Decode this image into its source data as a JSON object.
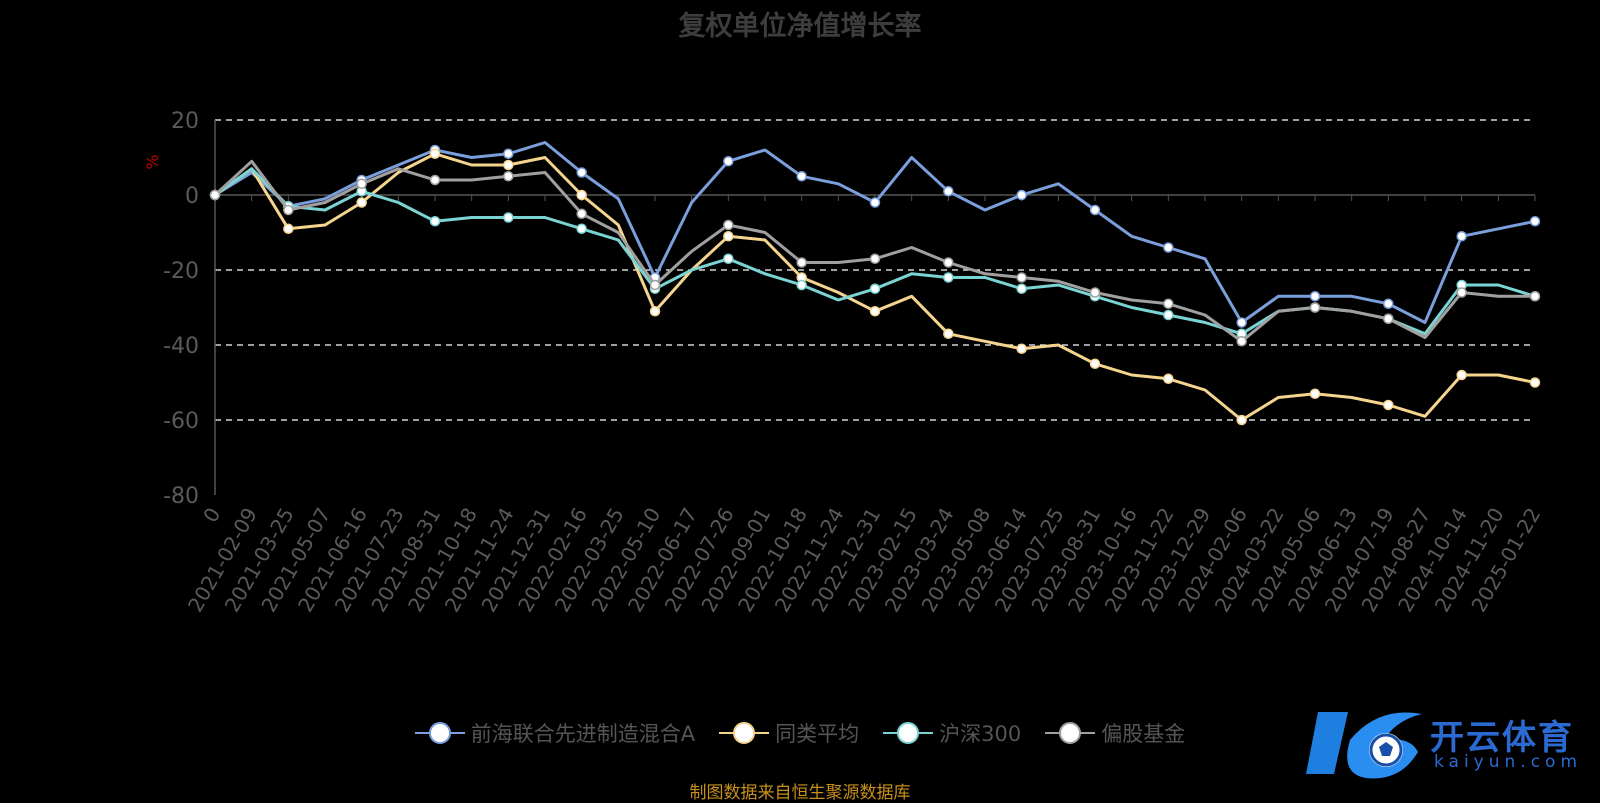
{
  "title": "复权单位净值增长率",
  "source_note": "制图数据来自恒生聚源数据库",
  "brand": {
    "name": "开云体育",
    "domain": "kaiyun.com"
  },
  "colors": {
    "grid": "#ffffff",
    "axis": "#555555",
    "tick_label": "#5a5a5a",
    "ylabel": "#c00000"
  },
  "chart_data": {
    "type": "line",
    "title": "复权单位净值增长率",
    "ylabel": "%",
    "ylim": [
      -80,
      20
    ],
    "yticks": [
      20,
      0,
      -20,
      -40,
      -60,
      -80
    ],
    "grid": "horizontal dashed",
    "legend_position": "bottom",
    "x": [
      "0",
      "2021-02-09",
      "2021-03-25",
      "2021-05-07",
      "2021-06-16",
      "2021-07-23",
      "2021-08-31",
      "2021-10-18",
      "2021-11-24",
      "2021-12-31",
      "2022-02-16",
      "2022-03-25",
      "2022-05-10",
      "2022-06-17",
      "2022-07-26",
      "2022-09-01",
      "2022-10-18",
      "2022-11-24",
      "2022-12-31",
      "2023-02-15",
      "2023-03-24",
      "2023-05-08",
      "2023-06-14",
      "2023-07-25",
      "2023-08-31",
      "2023-10-16",
      "2023-11-22",
      "2023-12-29",
      "2024-02-06",
      "2024-03-22",
      "2024-05-06",
      "2024-06-13",
      "2024-07-19",
      "2024-08-27",
      "2024-10-14",
      "2024-11-20",
      "2025-01-22"
    ],
    "series": [
      {
        "name": "前海联合先进制造混合A",
        "color": "#7b9fdc",
        "values": [
          0,
          6,
          -3,
          -1,
          4,
          8,
          12,
          10,
          11,
          14,
          6,
          -1,
          -22,
          -2,
          9,
          12,
          5,
          3,
          -2,
          10,
          1,
          -4,
          0,
          3,
          -4,
          -11,
          -14,
          -17,
          -34,
          -27,
          -27,
          -27,
          -29,
          -34,
          -11,
          -9,
          -7
        ]
      },
      {
        "name": "同类平均",
        "color": "#f5d48e",
        "values": [
          0,
          7,
          -9,
          -8,
          -2,
          6,
          11,
          8,
          8,
          10,
          0,
          -8,
          -31,
          -20,
          -11,
          -12,
          -22,
          -26,
          -31,
          -27,
          -37,
          -39,
          -41,
          -40,
          -45,
          -48,
          -49,
          -52,
          -60,
          -54,
          -53,
          -54,
          -56,
          -59,
          -48,
          -48,
          -50
        ]
      },
      {
        "name": "沪深300",
        "color": "#7ad4d4",
        "values": [
          0,
          7,
          -3,
          -4,
          1,
          -2,
          -7,
          -6,
          -6,
          -6,
          -9,
          -12,
          -25,
          -20,
          -17,
          -21,
          -24,
          -28,
          -25,
          -21,
          -22,
          -22,
          -25,
          -24,
          -27,
          -30,
          -32,
          -34,
          -37,
          -31,
          -30,
          -31,
          -33,
          -37,
          -24,
          -24,
          -27
        ]
      },
      {
        "name": "偏股基金",
        "color": "#a0a0a0",
        "values": [
          0,
          9,
          -4,
          -2,
          3,
          7,
          4,
          4,
          5,
          6,
          -5,
          -10,
          -24,
          -15,
          -8,
          -10,
          -18,
          -18,
          -17,
          -14,
          -18,
          -21,
          -22,
          -23,
          -26,
          -28,
          -29,
          -32,
          -39,
          -31,
          -30,
          -31,
          -33,
          -38,
          -26,
          -27,
          -27
        ]
      }
    ]
  }
}
